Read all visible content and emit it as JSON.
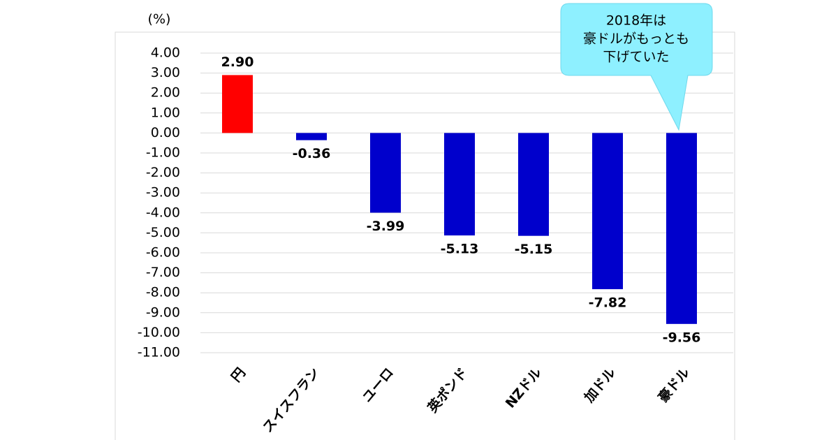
{
  "chart_data": {
    "type": "bar",
    "unit_label": "(%)",
    "categories": [
      "円",
      "スイスフラン",
      "ユーロ",
      "英ポンド",
      "NZドル",
      "加ドル",
      "豪ドル"
    ],
    "values": [
      2.9,
      -0.36,
      -3.99,
      -5.13,
      -5.15,
      -7.82,
      -9.56
    ],
    "value_labels": [
      "2.90",
      "-0.36",
      "-3.99",
      "-5.13",
      "-5.15",
      "-7.82",
      "-9.56"
    ],
    "colors": [
      "#ff0000",
      "#0000cc",
      "#0000cc",
      "#0000cc",
      "#0000cc",
      "#0000cc",
      "#0000cc"
    ],
    "ylim": [
      -11,
      4
    ],
    "yticks": [
      {
        "value": 4,
        "label": "4.00"
      },
      {
        "value": 3,
        "label": "3.00"
      },
      {
        "value": 2,
        "label": "2.00"
      },
      {
        "value": 1,
        "label": "1.00"
      },
      {
        "value": 0,
        "label": "0.00"
      },
      {
        "value": -1,
        "label": "-1.00"
      },
      {
        "value": -2,
        "label": "-2.00"
      },
      {
        "value": -3,
        "label": "-3.00"
      },
      {
        "value": -4,
        "label": "-4.00"
      },
      {
        "value": -5,
        "label": "-5.00"
      },
      {
        "value": -6,
        "label": "-6.00"
      },
      {
        "value": -7,
        "label": "-7.00"
      },
      {
        "value": -8,
        "label": "-8.00"
      },
      {
        "value": -9,
        "label": "-9.00"
      },
      {
        "value": -10,
        "label": "-10.00"
      },
      {
        "value": -11,
        "label": "-11.00"
      }
    ],
    "grid": true,
    "annotation": [
      "2018年は",
      "豪ドルがもっとも",
      "下げていた"
    ]
  }
}
